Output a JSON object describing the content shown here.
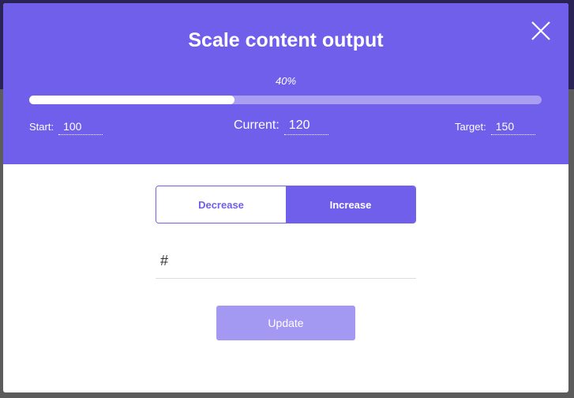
{
  "modal": {
    "title": "Scale content output",
    "close_icon": "close-x-icon",
    "progress": {
      "label": "40%",
      "percent": 40
    },
    "start": {
      "label": "Start:",
      "value": "100"
    },
    "current": {
      "label": "Current:",
      "value": "120"
    },
    "target": {
      "label": "Target:",
      "value": "150"
    },
    "toggle": {
      "decrease": "Decrease",
      "increase": "Increase",
      "selected": "increase"
    },
    "amount_field": {
      "prefix": "#",
      "value": ""
    },
    "update_label": "Update"
  },
  "colors": {
    "accent": "#6f5fea",
    "progress_track": "#a99ef2",
    "button_disabled": "#a399f2"
  }
}
